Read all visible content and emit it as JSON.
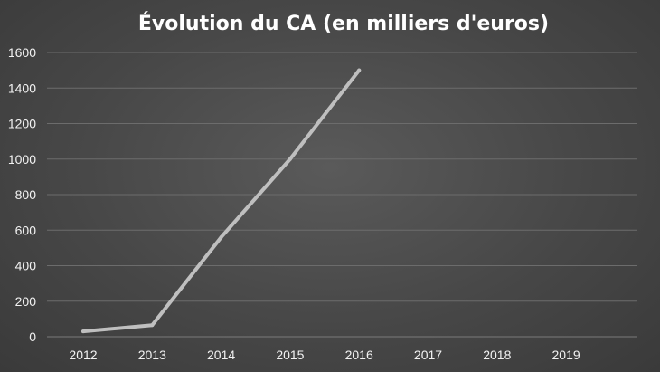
{
  "chart_data": {
    "type": "line",
    "title": "Évolution du CA (en milliers d'euros)",
    "xlabel": "",
    "ylabel": "",
    "categories": [
      "2012",
      "2013",
      "2014",
      "2015",
      "2016",
      "2017",
      "2018",
      "2019"
    ],
    "series": [
      {
        "values": [
          30,
          65,
          560,
          1000,
          1500,
          null,
          null,
          null
        ],
        "color": "#bfbfbf"
      }
    ],
    "ylim": [
      0,
      1600
    ],
    "yticks": [
      0,
      200,
      400,
      600,
      800,
      1000,
      1200,
      1400,
      1600
    ],
    "grid": true,
    "legend": "none",
    "colors": {
      "background": "#474747",
      "grid": "#6c6c6c",
      "line": "#bfbfbf",
      "text": "#ffffff"
    }
  }
}
